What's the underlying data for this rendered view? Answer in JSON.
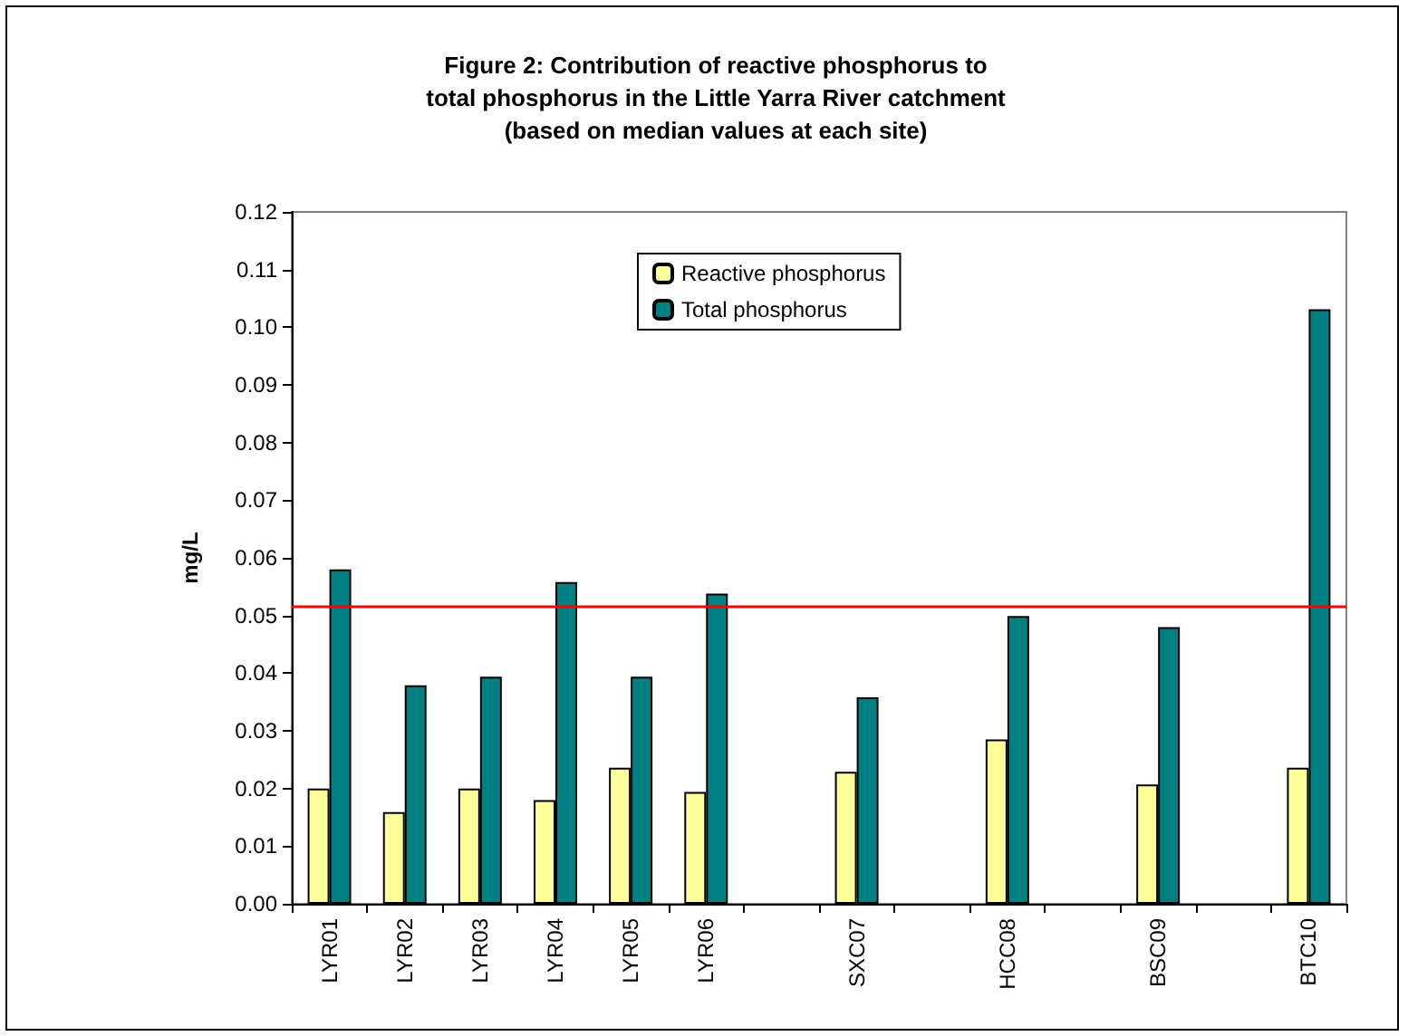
{
  "chart_data": {
    "type": "bar",
    "title": "Figure 2: Contribution of reactive phosphorus to\ntotal phosphorus in the Little Yarra River catchment\n(based on median values at each site)",
    "ylabel": "mg/L",
    "categories": [
      "LYR01",
      "LYR02",
      "LYR03",
      "LYR04",
      "LYR05",
      "LYR06",
      null,
      "SXC07",
      null,
      "HCC08",
      null,
      "BSC09",
      null,
      "BTC10"
    ],
    "series": [
      {
        "name": "Reactive phosphorus",
        "color": "#ffff99",
        "values": [
          0.02,
          0.0159,
          0.02,
          0.018,
          0.0236,
          0.0194,
          null,
          0.0229,
          null,
          0.0285,
          null,
          0.0207,
          null,
          0.0236
        ]
      },
      {
        "name": "Total phosphorus",
        "color": "#008080",
        "values": [
          0.058,
          0.0379,
          0.0394,
          0.0558,
          0.0394,
          0.0538,
          null,
          0.0358,
          null,
          0.0499,
          null,
          0.048,
          null,
          0.1031
        ]
      }
    ],
    "ylim": [
      0,
      0.12
    ],
    "yticks": [
      {
        "value": 0,
        "label": "0.00"
      },
      0.01,
      0.02,
      0.03,
      0.04,
      0.05,
      0.06,
      0.07,
      0.08,
      0.09,
      {
        "value": 0.1,
        "label": "0.10"
      },
      0.11,
      0.12
    ],
    "ref_lines": [
      {
        "axis": "y",
        "value": 0.0516,
        "color": "#ff0000"
      }
    ],
    "grid": false,
    "legend": "top"
  }
}
